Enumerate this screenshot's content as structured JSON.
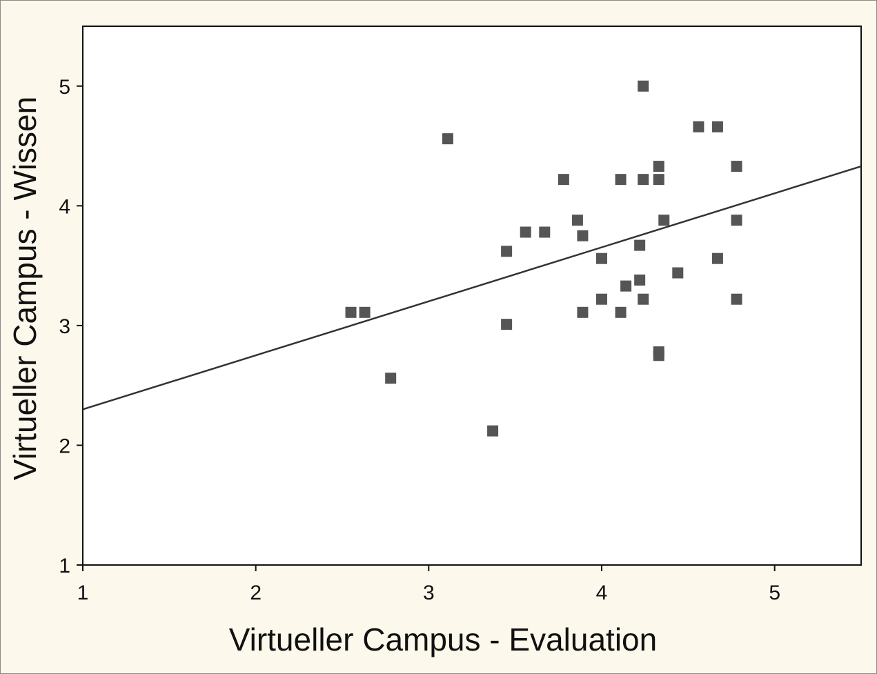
{
  "chart_data": {
    "type": "scatter",
    "title": "",
    "xlabel": "Virtueller Campus - Evaluation",
    "ylabel": "Virtueller Campus - Wissen",
    "xlim": [
      1,
      5.5
    ],
    "ylim": [
      1,
      5.5
    ],
    "xticks": [
      "1",
      "2",
      "3",
      "4",
      "5"
    ],
    "yticks": [
      "1",
      "2",
      "3",
      "4",
      "5"
    ],
    "grid": false,
    "legend": "none",
    "marker": "square",
    "marker_color": "#555555",
    "line_color": "#333333",
    "points": [
      {
        "x": 2.55,
        "y": 3.11
      },
      {
        "x": 2.63,
        "y": 3.11
      },
      {
        "x": 2.78,
        "y": 2.56
      },
      {
        "x": 3.11,
        "y": 4.56
      },
      {
        "x": 3.37,
        "y": 2.12
      },
      {
        "x": 3.45,
        "y": 3.01
      },
      {
        "x": 3.45,
        "y": 3.62
      },
      {
        "x": 3.56,
        "y": 3.78
      },
      {
        "x": 3.67,
        "y": 3.78
      },
      {
        "x": 3.78,
        "y": 4.22
      },
      {
        "x": 3.86,
        "y": 3.88
      },
      {
        "x": 3.89,
        "y": 3.75
      },
      {
        "x": 3.89,
        "y": 3.11
      },
      {
        "x": 4.0,
        "y": 3.56
      },
      {
        "x": 4.0,
        "y": 3.22
      },
      {
        "x": 4.11,
        "y": 4.22
      },
      {
        "x": 4.11,
        "y": 3.11
      },
      {
        "x": 4.14,
        "y": 3.33
      },
      {
        "x": 4.22,
        "y": 3.67
      },
      {
        "x": 4.22,
        "y": 3.38
      },
      {
        "x": 4.24,
        "y": 5.0
      },
      {
        "x": 4.24,
        "y": 4.22
      },
      {
        "x": 4.24,
        "y": 3.22
      },
      {
        "x": 4.33,
        "y": 4.33
      },
      {
        "x": 4.33,
        "y": 4.22
      },
      {
        "x": 4.33,
        "y": 2.78
      },
      {
        "x": 4.33,
        "y": 2.75
      },
      {
        "x": 4.36,
        "y": 3.88
      },
      {
        "x": 4.44,
        "y": 3.44
      },
      {
        "x": 4.56,
        "y": 4.66
      },
      {
        "x": 4.67,
        "y": 4.66
      },
      {
        "x": 4.67,
        "y": 3.56
      },
      {
        "x": 4.78,
        "y": 4.33
      },
      {
        "x": 4.78,
        "y": 3.88
      },
      {
        "x": 4.78,
        "y": 3.22
      }
    ],
    "regression_line": {
      "x": [
        1,
        5.5
      ],
      "y": [
        2.3,
        4.33
      ]
    }
  }
}
